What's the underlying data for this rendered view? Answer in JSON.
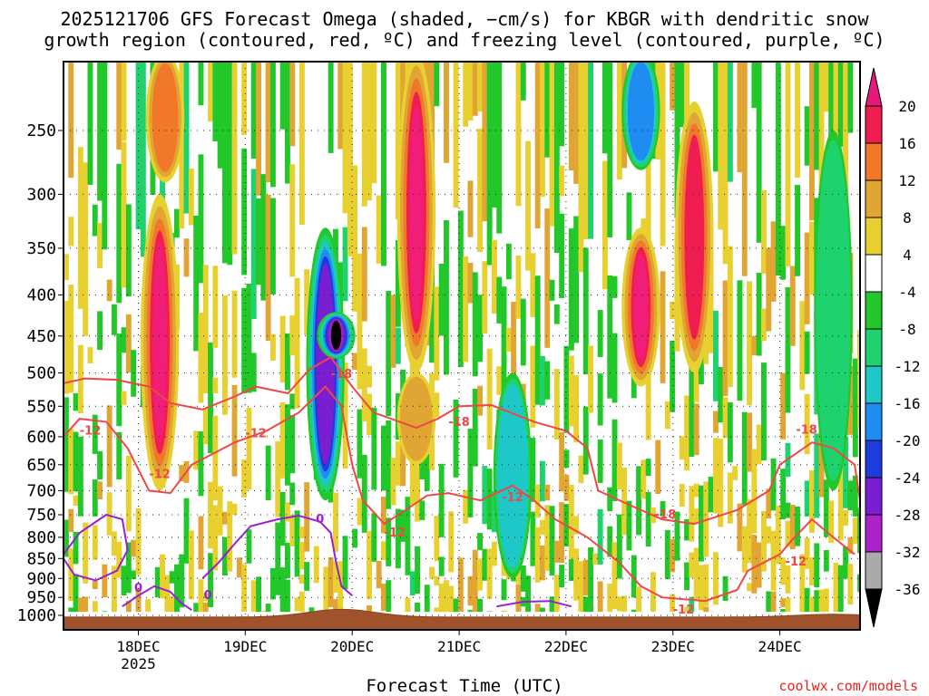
{
  "chart_data": {
    "type": "heatmap",
    "title_line1": "2025121706 GFS Forecast Omega (shaded, −cm/s) for KBGR with dendritic snow",
    "title_line2": "growth region (contoured, red, ºC) and freezing level (contoured, purple, ºC)",
    "xlabel": "Forecast Time (UTC)",
    "ylabel": "",
    "x_ticks": [
      "18DEC",
      "19DEC",
      "20DEC",
      "21DEC",
      "22DEC",
      "23DEC",
      "24DEC"
    ],
    "x_year_label": "2025",
    "x_range_days": [
      17.3,
      24.75
    ],
    "y_ticks": [
      250,
      300,
      350,
      400,
      450,
      500,
      550,
      600,
      650,
      700,
      750,
      800,
      850,
      900,
      950,
      1000
    ],
    "y_range_hpa": [
      200,
      1015
    ],
    "colorbar": {
      "labels": [
        20,
        16,
        12,
        8,
        4,
        -4,
        -8,
        -12,
        -16,
        -20,
        -24,
        -28,
        -32,
        -36
      ],
      "colors": [
        "#f01e50",
        "#f07828",
        "#e0a533",
        "#e8d030",
        "#ffffff",
        "#22c82a",
        "#1ed26e",
        "#1ec8c8",
        "#1e8cf0",
        "#1e3cdc",
        "#7a1ed2",
        "#aa22c8",
        "#aaaaaa"
      ],
      "top_arrow_color": "#e6197a",
      "bottom_arrow_color": "#000000"
    },
    "dendritic_contours": [
      {
        "value": -12,
        "label": "-12"
      },
      {
        "value": -18,
        "label": "-18"
      }
    ],
    "freezing_contour": {
      "value": 0,
      "label": "0"
    },
    "contour_labels": [
      {
        "text": "-12",
        "day": 17.55,
        "p": 590
      },
      {
        "text": "-12",
        "day": 18.2,
        "p": 668
      },
      {
        "text": "-12",
        "day": 19.1,
        "p": 595
      },
      {
        "text": "-18",
        "day": 19.9,
        "p": 502
      },
      {
        "text": "-12",
        "day": 20.4,
        "p": 790
      },
      {
        "text": "-18",
        "day": 21.0,
        "p": 576
      },
      {
        "text": "-12",
        "day": 21.5,
        "p": 714
      },
      {
        "text": "-18",
        "day": 22.93,
        "p": 750
      },
      {
        "text": "-12",
        "day": 23.1,
        "p": 985
      },
      {
        "text": "-12",
        "day": 24.15,
        "p": 858
      },
      {
        "text": "-18",
        "day": 24.25,
        "p": 589
      },
      {
        "text": "0",
        "day": 18.0,
        "p": 925
      },
      {
        "text": "0",
        "day": 18.65,
        "p": 945
      },
      {
        "text": "0",
        "day": 19.7,
        "p": 760
      }
    ],
    "omega_cells": [
      {
        "day": 18.2,
        "p_top": 300,
        "p_bot": 700,
        "value": 20
      },
      {
        "day": 18.25,
        "p_top": 200,
        "p_bot": 290,
        "value": 14
      },
      {
        "day": 20.6,
        "p_top": 200,
        "p_bot": 500,
        "value": 20
      },
      {
        "day": 20.6,
        "p_top": 500,
        "p_bot": 650,
        "value": 10
      },
      {
        "day": 22.7,
        "p_top": 330,
        "p_bot": 520,
        "value": 20
      },
      {
        "day": 23.2,
        "p_top": 230,
        "p_bot": 500,
        "value": 16
      },
      {
        "day": 19.75,
        "p_top": 330,
        "p_bot": 720,
        "value": -24
      },
      {
        "day": 19.85,
        "p_top": 420,
        "p_bot": 480,
        "value": -36
      },
      {
        "day": 21.5,
        "p_top": 500,
        "p_bot": 900,
        "value": -12
      },
      {
        "day": 22.7,
        "p_top": 200,
        "p_bot": 280,
        "value": -16
      },
      {
        "day": 24.5,
        "p_top": 250,
        "p_bot": 700,
        "value": -8
      }
    ]
  },
  "footer": {
    "credit": "coolwx.com/models"
  }
}
